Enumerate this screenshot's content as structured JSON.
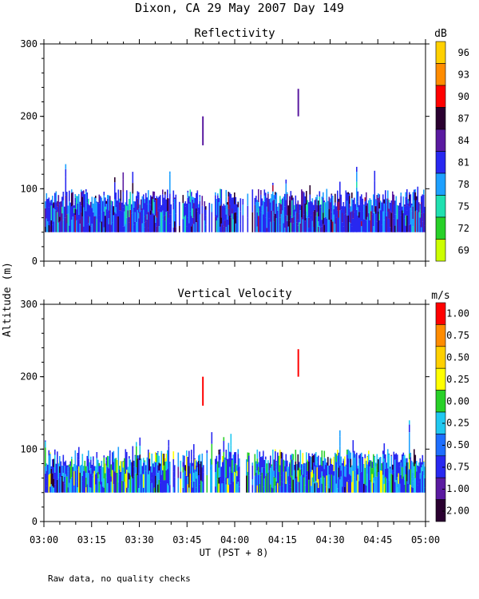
{
  "title": "Dixon, CA 29 May 2007  Day 149",
  "ylabel": "Altitude (m)",
  "xlabel": "UT  (PST + 8)",
  "footnote": "Raw data, no quality checks",
  "chart_data": [
    {
      "type": "heatmap",
      "title": "Reflectivity",
      "x_range": [
        "03:00",
        "05:00"
      ],
      "ylim": [
        0,
        300
      ],
      "y_ticks": [
        "0",
        "100",
        "200",
        "300"
      ],
      "x_ticks": [
        "03:00",
        "03:15",
        "03:30",
        "03:45",
        "04:00",
        "04:15",
        "04:30",
        "04:45",
        "05:00"
      ],
      "echo_band": {
        "base_m": 40,
        "top_m": 100,
        "max_m": 140
      },
      "elevated_echoes": [
        {
          "time": "03:50",
          "bottom_m": 160,
          "top_m": 200
        },
        {
          "time": "04:20",
          "bottom_m": 200,
          "top_m": 238
        }
      ],
      "colorbar": {
        "unit": "dB",
        "labels": [
          "96",
          "93",
          "90",
          "87",
          "84",
          "81",
          "78",
          "75",
          "72",
          "69"
        ],
        "colors": [
          "#ffd000",
          "#ff8c00",
          "#ff0000",
          "#2a0030",
          "#5a1aa0",
          "#2828f0",
          "#1ea0ff",
          "#20e0b0",
          "#28d028",
          "#ccff00"
        ]
      },
      "dominant_colors": [
        "#2828f0",
        "#1ea0ff",
        "#5a1aa0",
        "#2a0030",
        "#20e0b0",
        "#b0103a"
      ]
    },
    {
      "type": "heatmap",
      "title": "Vertical Velocity",
      "x_range": [
        "03:00",
        "05:00"
      ],
      "ylim": [
        0,
        300
      ],
      "y_ticks": [
        "0",
        "100",
        "200",
        "300"
      ],
      "x_ticks": [
        "03:00",
        "03:15",
        "03:30",
        "03:45",
        "04:00",
        "04:15",
        "04:30",
        "04:45",
        "05:00"
      ],
      "echo_band": {
        "base_m": 40,
        "top_m": 100,
        "max_m": 140
      },
      "elevated_echoes": [
        {
          "time": "03:50",
          "bottom_m": 160,
          "top_m": 200
        },
        {
          "time": "04:20",
          "bottom_m": 200,
          "top_m": 238
        }
      ],
      "colorbar": {
        "unit": "m/s",
        "labels": [
          "1.00",
          "0.75",
          "0.50",
          "0.25",
          "0.00",
          "-0.25",
          "-0.50",
          "-0.75",
          "-1.00",
          "-2.00"
        ],
        "colors": [
          "#ff0000",
          "#ff8c00",
          "#ffd000",
          "#ffff00",
          "#28d028",
          "#20c8f0",
          "#1e6eff",
          "#2828f0",
          "#5a1aa0",
          "#2a0030"
        ]
      },
      "dominant_colors": [
        "#2828f0",
        "#1ea0ff",
        "#20c8f0",
        "#28d028",
        "#ffff00",
        "#2a0030",
        "#5a1aa0"
      ]
    }
  ]
}
